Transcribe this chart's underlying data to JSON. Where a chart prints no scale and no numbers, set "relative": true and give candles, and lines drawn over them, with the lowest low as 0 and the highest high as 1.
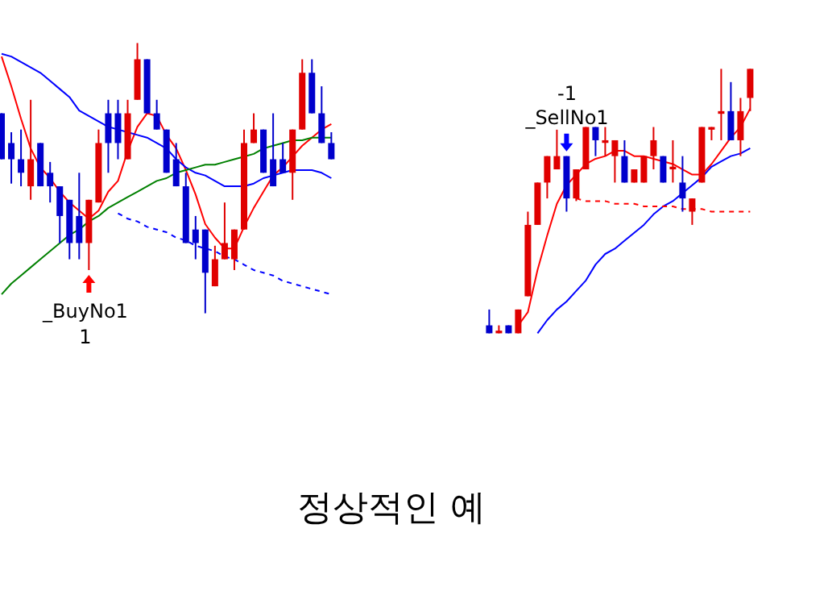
{
  "chart_data": [
    {
      "type": "candlestick",
      "relative": true,
      "categories": [
        null,
        null,
        null,
        null,
        null,
        null,
        null,
        null,
        null,
        null,
        null,
        null,
        null,
        null,
        null,
        null,
        null,
        null,
        null,
        null,
        null,
        null,
        null,
        null,
        null,
        null,
        null,
        null,
        null,
        null,
        null,
        null,
        null,
        null,
        null
      ],
      "ohlc": [
        [
          0.74,
          0.74,
          0.57,
          0.57
        ],
        [
          0.63,
          0.67,
          0.48,
          0.57
        ],
        [
          0.57,
          0.68,
          0.47,
          0.52
        ],
        [
          0.47,
          0.79,
          0.42,
          0.57
        ],
        [
          0.63,
          0.63,
          0.47,
          0.47
        ],
        [
          0.52,
          0.56,
          0.41,
          0.47
        ],
        [
          0.47,
          0.47,
          0.26,
          0.36
        ],
        [
          0.42,
          0.42,
          0.2,
          0.26
        ],
        [
          0.36,
          0.52,
          0.2,
          0.26
        ],
        [
          0.26,
          0.42,
          0.16,
          0.42
        ],
        [
          0.41,
          0.68,
          0.41,
          0.63
        ],
        [
          0.74,
          0.79,
          0.52,
          0.63
        ],
        [
          0.74,
          0.79,
          0.57,
          0.63
        ],
        [
          0.57,
          0.79,
          0.57,
          0.74
        ],
        [
          0.79,
          1.0,
          0.79,
          0.94
        ],
        [
          0.94,
          0.94,
          0.74,
          0.74
        ],
        [
          0.74,
          0.79,
          0.68,
          0.68
        ],
        [
          0.68,
          0.68,
          0.52,
          0.52
        ],
        [
          0.57,
          0.63,
          0.47,
          0.47
        ],
        [
          0.47,
          0.52,
          0.26,
          0.26
        ],
        [
          0.31,
          0.36,
          0.2,
          0.26
        ],
        [
          0.31,
          0.31,
          0.0,
          0.15
        ],
        [
          0.1,
          0.25,
          0.1,
          0.2
        ],
        [
          0.2,
          0.41,
          0.2,
          0.26
        ],
        [
          0.2,
          0.31,
          0.16,
          0.31
        ],
        [
          0.31,
          0.68,
          0.31,
          0.63
        ],
        [
          0.63,
          0.74,
          0.63,
          0.68
        ],
        [
          0.68,
          0.68,
          0.52,
          0.52
        ],
        [
          0.57,
          0.74,
          0.47,
          0.47
        ],
        [
          0.57,
          0.63,
          0.52,
          0.52
        ],
        [
          0.52,
          0.68,
          0.42,
          0.68
        ],
        [
          0.68,
          0.94,
          0.68,
          0.89
        ],
        [
          0.89,
          0.94,
          0.74,
          0.74
        ],
        [
          0.74,
          0.84,
          0.63,
          0.63
        ],
        [
          0.63,
          0.67,
          0.57,
          0.57
        ]
      ],
      "colors": [
        "#0000cc",
        "#0000cc",
        "#0000cc",
        "#e00000",
        "#0000cc",
        "#0000cc",
        "#0000cc",
        "#0000cc",
        "#0000cc",
        "#e00000",
        "#e00000",
        "#0000cc",
        "#0000cc",
        "#e00000",
        "#e00000",
        "#0000cc",
        "#0000cc",
        "#0000cc",
        "#0000cc",
        "#0000cc",
        "#0000cc",
        "#0000cc",
        "#e00000",
        "#e00000",
        "#e00000",
        "#e00000",
        "#e00000",
        "#0000cc",
        "#0000cc",
        "#0000cc",
        "#e00000",
        "#e00000",
        "#0000cc",
        "#0000cc",
        "#0000cc"
      ],
      "series": [
        {
          "type": "line",
          "color": "#ff0000",
          "line_style": "solid",
          "values": [
            0.95,
            0.84,
            0.72,
            0.61,
            0.54,
            0.5,
            0.45,
            0.41,
            0.38,
            0.35,
            0.38,
            0.45,
            0.49,
            0.6,
            0.69,
            0.74,
            0.73,
            0.66,
            0.61,
            0.53,
            0.44,
            0.33,
            0.28,
            0.24,
            0.24,
            0.32,
            0.39,
            0.45,
            0.51,
            0.54,
            0.58,
            0.62,
            0.65,
            0.68,
            0.7
          ]
        },
        {
          "type": "line",
          "color": "#0000ff",
          "line_style": "solid",
          "values": [
            0.96,
            0.95,
            0.93,
            0.91,
            0.89,
            0.86,
            0.83,
            0.8,
            0.75,
            0.73,
            0.71,
            0.69,
            0.68,
            0.67,
            0.66,
            0.65,
            0.63,
            0.61,
            0.57,
            0.54,
            0.52,
            0.51,
            0.49,
            0.47,
            0.47,
            0.47,
            0.48,
            0.5,
            0.51,
            0.52,
            0.53,
            0.53,
            0.53,
            0.52,
            0.5
          ]
        },
        {
          "type": "line",
          "color": "#008000",
          "line_style": "solid",
          "values": [
            0.07,
            0.11,
            0.14,
            0.17,
            0.2,
            0.23,
            0.26,
            0.29,
            0.31,
            0.34,
            0.36,
            0.39,
            0.41,
            0.43,
            0.45,
            0.47,
            0.49,
            0.5,
            0.52,
            0.53,
            0.54,
            0.55,
            0.55,
            0.56,
            0.57,
            0.58,
            0.59,
            0.61,
            0.62,
            0.63,
            0.64,
            0.64,
            0.65,
            0.65,
            0.65
          ]
        },
        {
          "type": "line",
          "color": "#0000ff",
          "line_style": "dashed",
          "values": [
            null,
            null,
            null,
            null,
            null,
            null,
            null,
            null,
            null,
            null,
            null,
            null,
            0.37,
            0.35,
            0.34,
            0.32,
            0.31,
            0.3,
            0.28,
            0.27,
            0.25,
            0.24,
            0.23,
            0.21,
            0.2,
            0.18,
            0.16,
            0.15,
            0.14,
            0.12,
            0.11,
            0.1,
            0.09,
            0.08,
            0.07
          ]
        }
      ],
      "annotations": [
        "_BuyNo1",
        "1"
      ]
    },
    {
      "type": "candlestick",
      "relative": true,
      "categories": [
        null,
        null,
        null,
        null,
        null,
        null,
        null,
        null,
        null,
        null,
        null,
        null,
        null,
        null,
        null,
        null,
        null,
        null,
        null,
        null,
        null,
        null,
        null,
        null,
        null,
        null,
        null,
        null
      ],
      "ohlc": [
        [
          0.03,
          0.09,
          0.0,
          0.0
        ],
        [
          0.0,
          0.03,
          0.0,
          0.01
        ],
        [
          0.03,
          0.03,
          0.0,
          0.0
        ],
        [
          0.0,
          0.09,
          0.0,
          0.09
        ],
        [
          0.14,
          0.46,
          0.14,
          0.41
        ],
        [
          0.41,
          0.57,
          0.41,
          0.57
        ],
        [
          0.57,
          0.67,
          0.51,
          0.67
        ],
        [
          0.62,
          0.77,
          0.62,
          0.67
        ],
        [
          0.67,
          0.67,
          0.46,
          0.51
        ],
        [
          0.51,
          0.62,
          0.5,
          0.62
        ],
        [
          0.62,
          0.78,
          0.62,
          0.78
        ],
        [
          0.78,
          0.78,
          0.67,
          0.73
        ],
        [
          0.72,
          0.78,
          0.67,
          0.73
        ],
        [
          0.67,
          0.73,
          0.57,
          0.73
        ],
        [
          0.67,
          0.73,
          0.57,
          0.57
        ],
        [
          0.57,
          0.62,
          0.57,
          0.62
        ],
        [
          0.57,
          0.67,
          0.57,
          0.67
        ],
        [
          0.67,
          0.78,
          0.62,
          0.73
        ],
        [
          0.67,
          0.67,
          0.57,
          0.57
        ],
        [
          0.62,
          0.73,
          0.57,
          0.63
        ],
        [
          0.57,
          0.67,
          0.46,
          0.51
        ],
        [
          0.46,
          0.51,
          0.41,
          0.51
        ],
        [
          0.57,
          0.78,
          0.57,
          0.78
        ],
        [
          0.77,
          0.78,
          0.73,
          0.78
        ],
        [
          0.83,
          1.0,
          0.73,
          0.84
        ],
        [
          0.84,
          0.95,
          0.73,
          0.73
        ],
        [
          0.73,
          0.89,
          0.67,
          0.84
        ],
        [
          0.89,
          1.0,
          0.84,
          1.0
        ]
      ],
      "colors": [
        "#0000cc",
        "#e00000",
        "#0000cc",
        "#e00000",
        "#e00000",
        "#e00000",
        "#e00000",
        "#e00000",
        "#0000cc",
        "#e00000",
        "#e00000",
        "#0000cc",
        "#e00000",
        "#e00000",
        "#0000cc",
        "#e00000",
        "#e00000",
        "#e00000",
        "#0000cc",
        "#e00000",
        "#0000cc",
        "#e00000",
        "#e00000",
        "#e00000",
        "#e00000",
        "#0000cc",
        "#e00000",
        "#e00000"
      ],
      "series": [
        {
          "type": "line",
          "color": "#ff0000",
          "line_style": "solid",
          "values": [
            null,
            null,
            null,
            0.03,
            0.08,
            0.24,
            0.37,
            0.49,
            0.56,
            0.6,
            0.64,
            0.66,
            0.67,
            0.69,
            0.69,
            0.67,
            0.67,
            0.66,
            0.65,
            0.64,
            0.62,
            0.6,
            0.6,
            0.64,
            0.69,
            0.74,
            0.78,
            0.85
          ]
        },
        {
          "type": "line",
          "color": "#0000ff",
          "line_style": "solid",
          "values": [
            null,
            null,
            null,
            null,
            null,
            0,
            0.05,
            0.09,
            0.12,
            0.16,
            0.2,
            0.26,
            0.3,
            0.32,
            0.35,
            0.38,
            0.41,
            0.45,
            0.48,
            0.5,
            0.53,
            0.56,
            0.59,
            0.63,
            0.65,
            0.67,
            0.68,
            0.7
          ]
        },
        {
          "type": "line",
          "color": "#ff0000",
          "line_style": "dashed",
          "values": [
            null,
            null,
            null,
            null,
            null,
            null,
            null,
            null,
            null,
            0.51,
            0.5,
            0.5,
            0.5,
            0.49,
            0.49,
            0.49,
            0.48,
            0.48,
            0.48,
            0.48,
            0.47,
            0.47,
            0.47,
            0.46,
            0.46,
            0.46,
            0.46,
            0.46
          ]
        }
      ],
      "annotations": [
        "-1",
        "_SellNo1",
        "정상적인 예"
      ]
    }
  ]
}
